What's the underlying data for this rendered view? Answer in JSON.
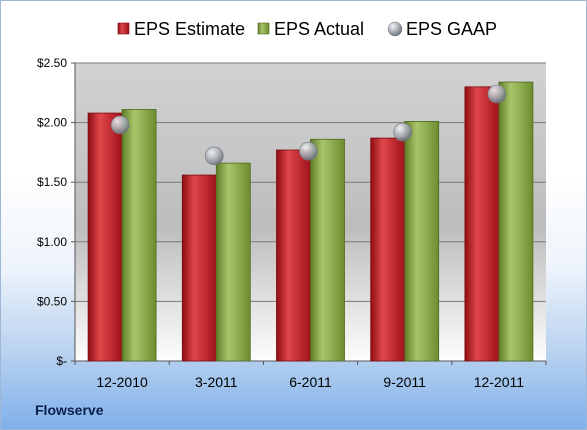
{
  "company": "Flowserve",
  "chart_data": {
    "type": "bar",
    "title": "",
    "xlabel": "",
    "ylabel": "",
    "categories": [
      "12-2010",
      "3-2011",
      "6-2011",
      "9-2011",
      "12-2011"
    ],
    "series": [
      {
        "name": "EPS Estimate",
        "kind": "bar",
        "color": "#c0181f",
        "values": [
          2.08,
          1.56,
          1.77,
          1.87,
          2.3
        ]
      },
      {
        "name": "EPS Actual",
        "kind": "bar",
        "color": "#7ea03b",
        "values": [
          2.11,
          1.66,
          1.86,
          2.01,
          2.34
        ]
      },
      {
        "name": "EPS GAAP",
        "kind": "marker",
        "color": "#9aa3ad",
        "values": [
          1.98,
          1.72,
          1.76,
          1.92,
          2.24
        ]
      }
    ],
    "ylim": [
      0,
      2.5
    ],
    "yticks": [
      {
        "value": 0,
        "label": "$-"
      },
      {
        "value": 0.5,
        "label": "$0.50"
      },
      {
        "value": 1.0,
        "label": "$1.00"
      },
      {
        "value": 1.5,
        "label": "$1.50"
      },
      {
        "value": 2.0,
        "label": "$2.00"
      },
      {
        "value": 2.5,
        "label": "$2.50"
      }
    ],
    "grid": true,
    "legend": "top"
  }
}
